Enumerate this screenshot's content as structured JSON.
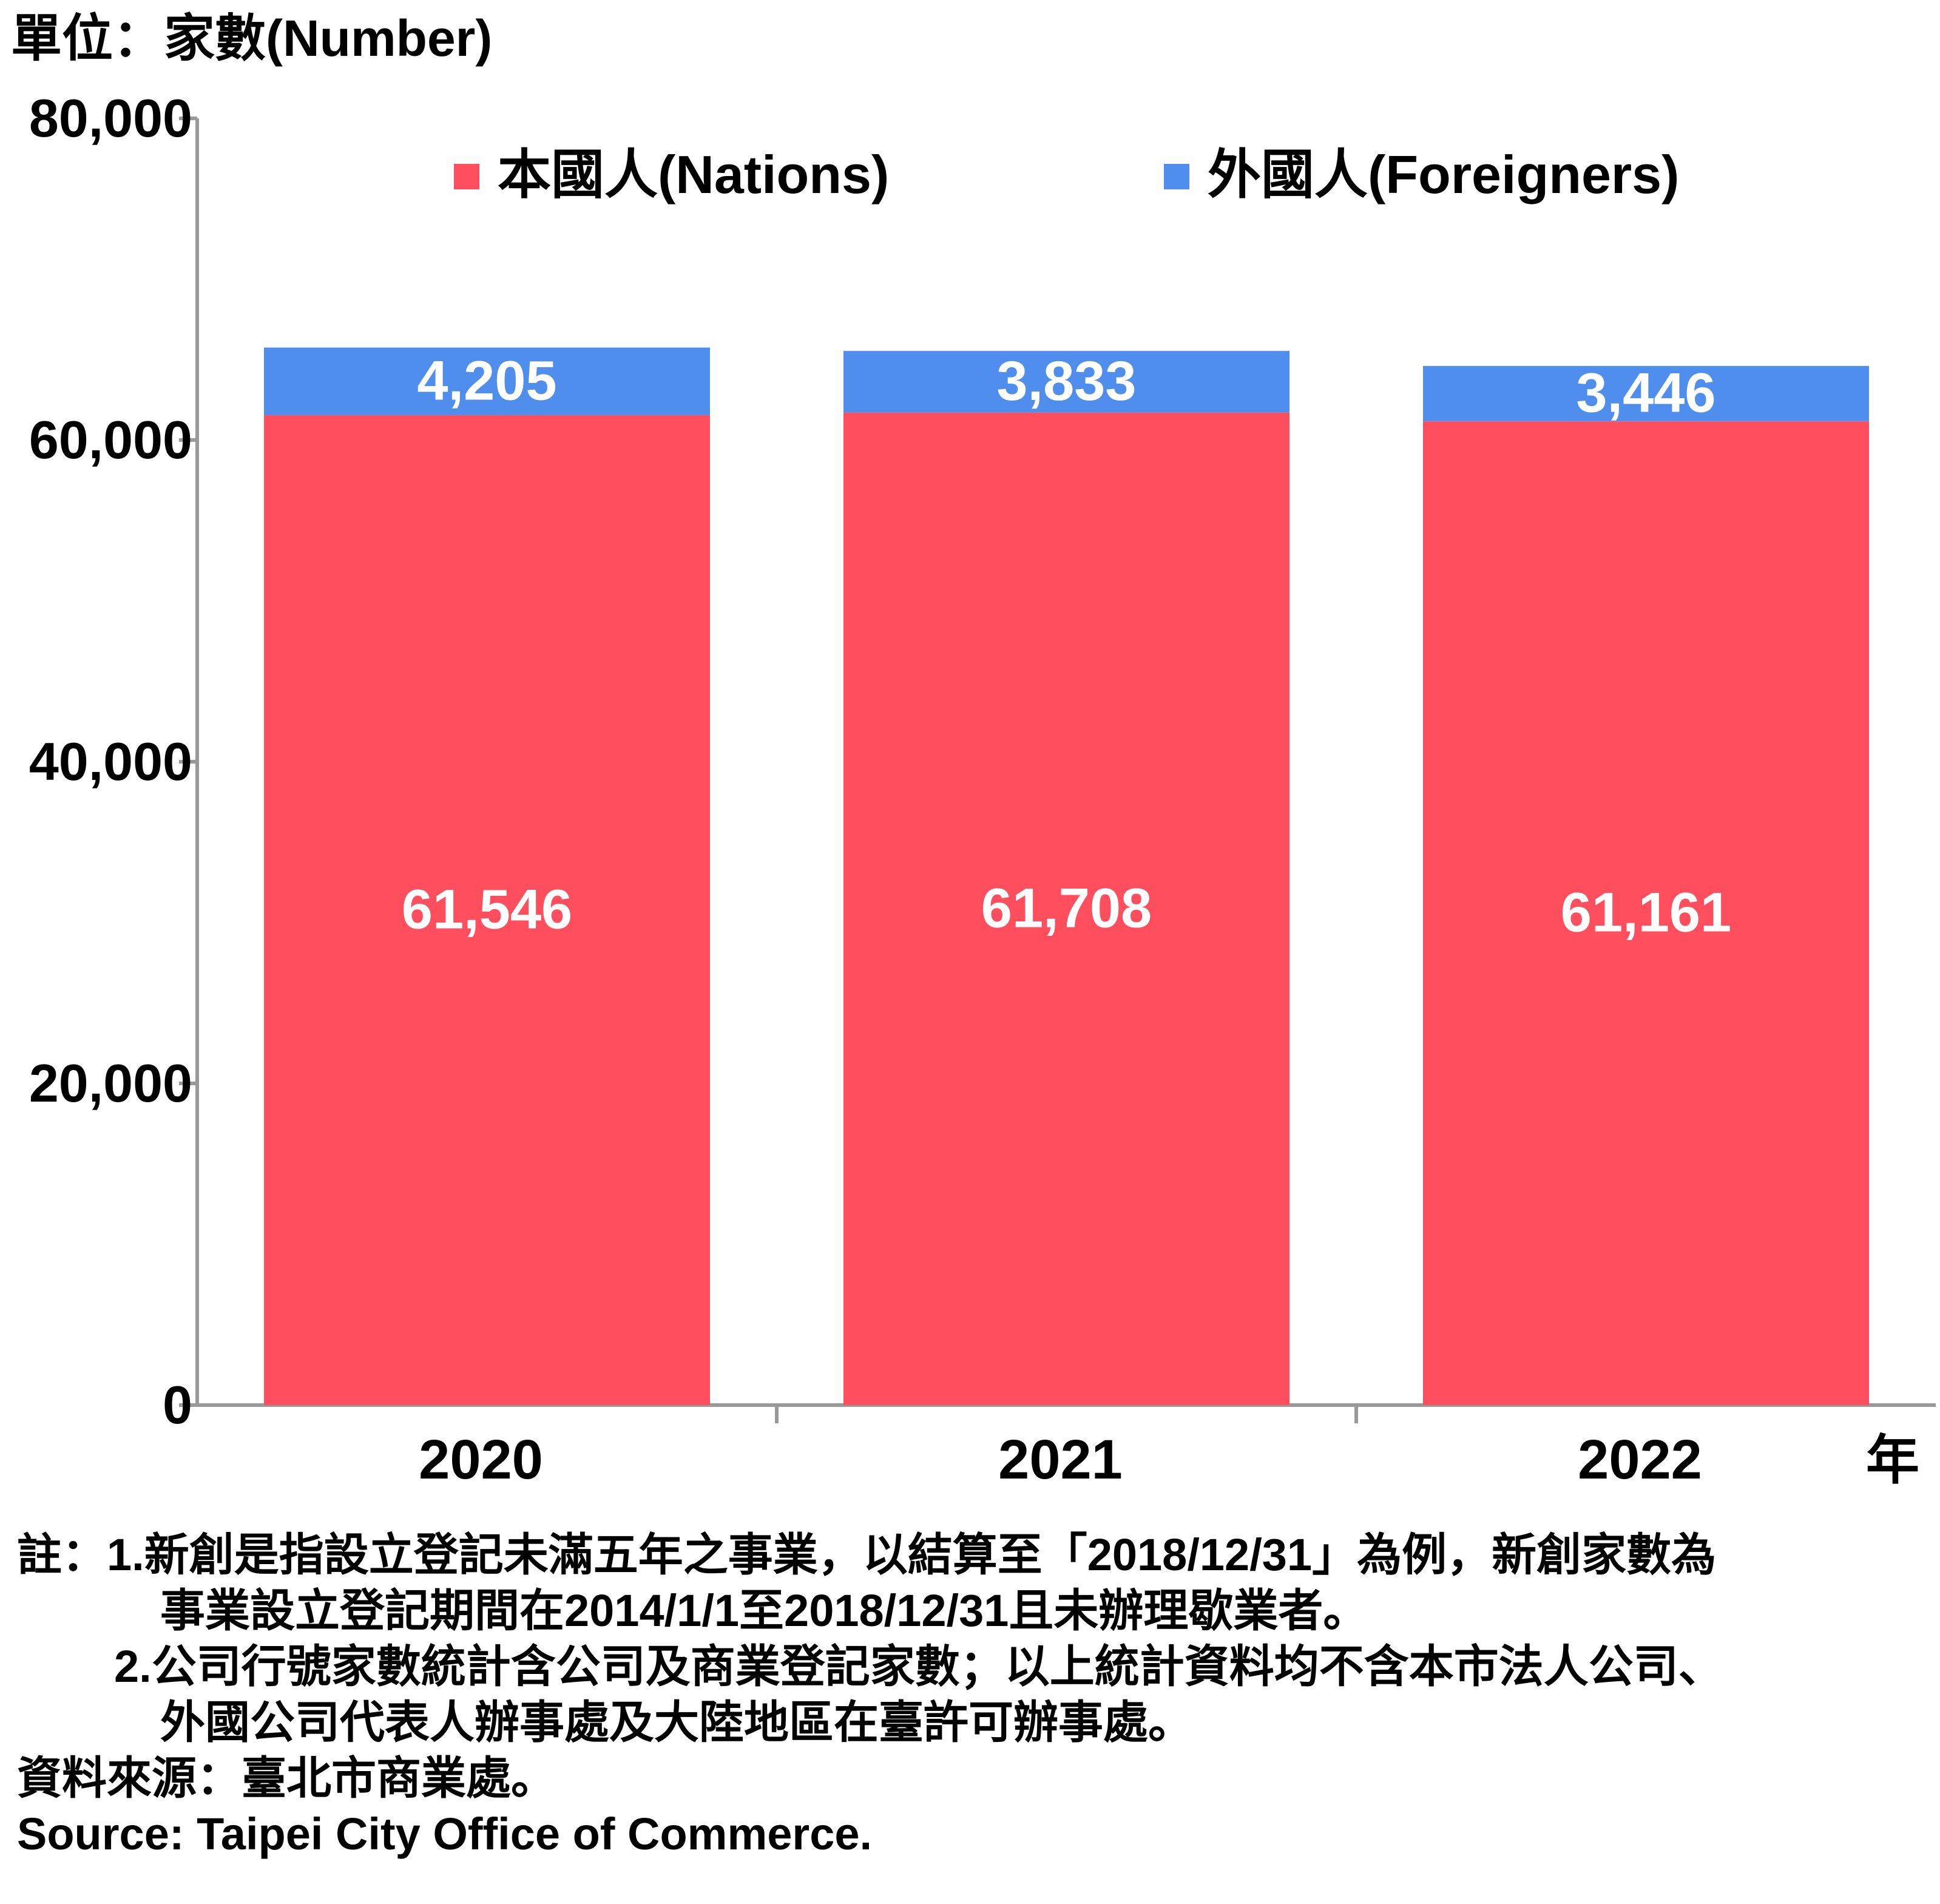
{
  "chart_data": {
    "type": "bar",
    "stacked": true,
    "unit_label": "單位：家數(Number)",
    "categories": [
      "2020",
      "2021",
      "2022"
    ],
    "x_unit": "年",
    "series": [
      {
        "name": "本國人(Nations)",
        "color": "#FF4F5E",
        "values": [
          61546,
          61708,
          61161
        ],
        "labels": [
          "61,546",
          "61,708",
          "61,161"
        ]
      },
      {
        "name": "外國人(Foreigners)",
        "color": "#4F8EEC",
        "values": [
          4205,
          3833,
          3446
        ],
        "labels": [
          "4,205",
          "3,833",
          "3,446"
        ]
      }
    ],
    "ylim": [
      0,
      80000
    ],
    "yticks": [
      0,
      20000,
      40000,
      60000,
      80000
    ],
    "ytick_labels": [
      "0",
      "20,000",
      "40,000",
      "60,000",
      "80,000"
    ],
    "grid": false,
    "legend_position": "top"
  },
  "notes": {
    "line1": "註：1.新創是指設立登記未滿五年之事業，以結算至「2018/12/31」為例，新創家數為",
    "line2": "事業設立登記期間在2014/1/1至2018/12/31且未辦理歇業者。",
    "line3": "2.公司行號家數統計含公司及商業登記家數；以上統計資料均不含本市法人公司、",
    "line4": "外國公司代表人辦事處及大陸地區在臺許可辦事處。",
    "source_zh": "資料來源：臺北市商業處。",
    "source_en": "Source: Taipei City Office of Commerce."
  }
}
